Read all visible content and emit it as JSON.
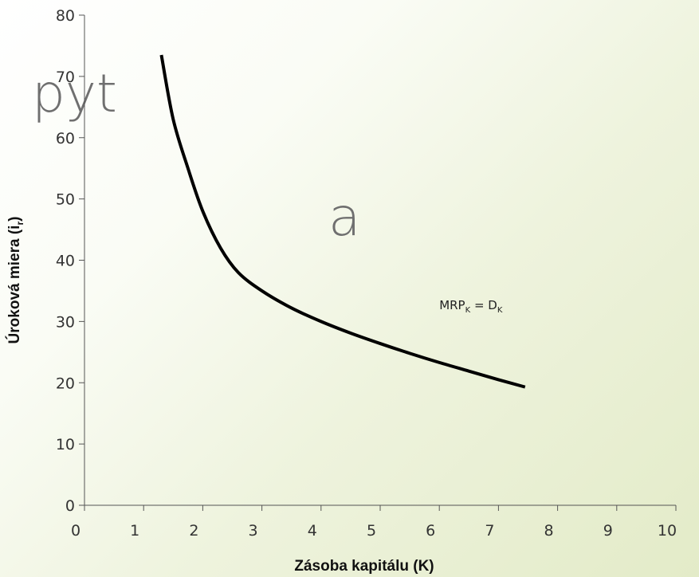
{
  "background": {
    "word_fragments": [
      "pyt",
      "a"
    ]
  },
  "chart_data": {
    "type": "line",
    "xlabel": "Zásoba kapitálu (K)",
    "ylabel": "Úroková miera (i",
    "ylabel_sub": "r",
    "ylabel_close": ")",
    "xlim": [
      0,
      10
    ],
    "ylim": [
      0,
      80
    ],
    "x_ticks": [
      0,
      1,
      2,
      3,
      4,
      5,
      6,
      7,
      8,
      9,
      10
    ],
    "y_ticks": [
      0,
      10,
      20,
      30,
      40,
      50,
      60,
      70,
      80
    ],
    "grid": false,
    "series": [
      {
        "name": "MRPK = DK",
        "color": "#000000",
        "x": [
          1.3,
          1.5,
          1.75,
          2.0,
          2.3,
          2.6,
          3.0,
          3.5,
          4.0,
          4.5,
          5.0,
          5.5,
          6.0,
          6.5,
          7.0,
          7.45
        ],
        "y": [
          73.5,
          63,
          55,
          48,
          42,
          38,
          35,
          32.2,
          30,
          28.1,
          26.4,
          24.8,
          23.3,
          21.9,
          20.5,
          19.3
        ]
      }
    ],
    "annotation": {
      "text_main": "MRP",
      "text_sub1": "K",
      "text_eq": " = D",
      "text_sub2": "K",
      "x": 6.0,
      "y": 32
    }
  }
}
